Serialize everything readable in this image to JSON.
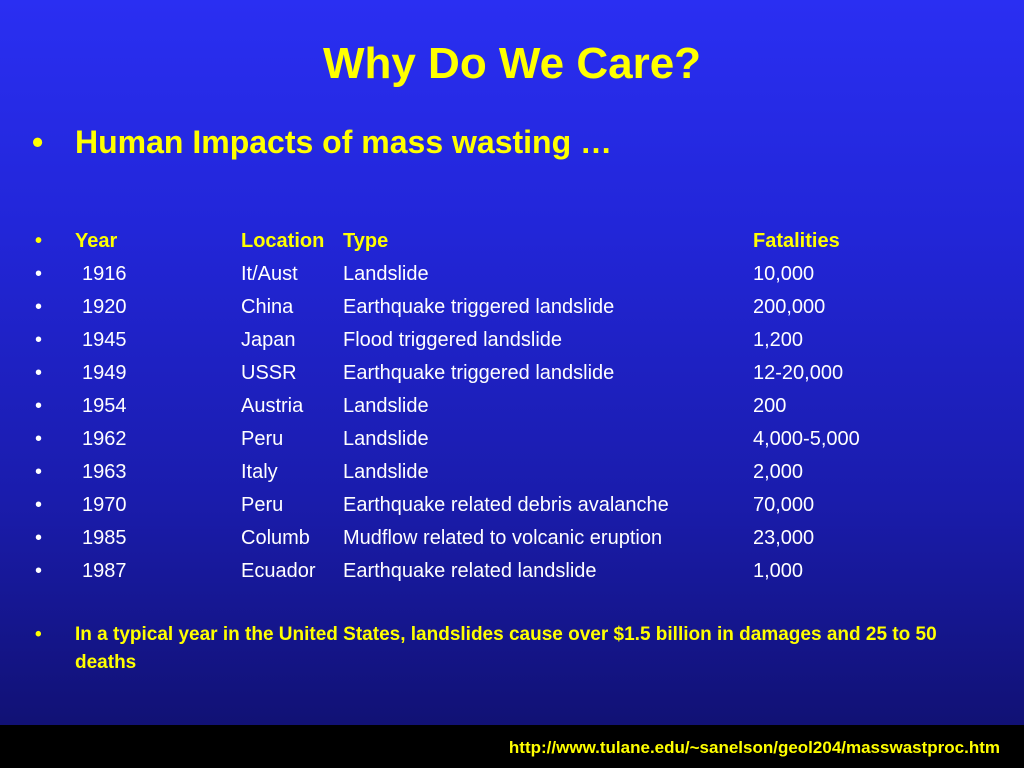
{
  "title": "Why Do We Care?",
  "subheading": {
    "bullet": "•",
    "text": "Human Impacts of mass wasting …"
  },
  "table": {
    "bullet": "•",
    "headers": [
      "Year",
      "Location",
      "Type",
      "Fatalities"
    ],
    "rows": [
      [
        "1916",
        "It/Aust",
        "Landslide",
        "10,000"
      ],
      [
        "1920",
        "China",
        "Earthquake triggered landslide",
        "200,000"
      ],
      [
        "1945",
        "Japan",
        "Flood triggered landslide",
        "1,200"
      ],
      [
        "1949",
        "USSR",
        "Earthquake triggered landslide",
        "12-20,000"
      ],
      [
        "1954",
        "Austria",
        "Landslide",
        "200"
      ],
      [
        "1962",
        "Peru",
        "Landslide",
        "4,000-5,000"
      ],
      [
        "1963",
        "Italy",
        "Landslide",
        "2,000"
      ],
      [
        "1970",
        "Peru",
        "Earthquake related debris avalanche",
        "70,000"
      ],
      [
        "1985",
        "Columb",
        "Mudflow related to volcanic eruption",
        "23,000"
      ],
      [
        "1987",
        "Ecuador",
        "Earthquake related landslide",
        "1,000"
      ]
    ]
  },
  "note": {
    "bullet": "•",
    "text": "In a typical year in the United States, landslides cause over $1.5 billion in damages and 25 to 50 deaths"
  },
  "footer": {
    "link_text": "http://www.tulane.edu/~sanelson/geol204/masswastproc.htm"
  },
  "colors": {
    "background_top": "#2a2ff2",
    "background_bottom": "#0f0f6a",
    "accent_yellow": "#ffff00",
    "body_text": "#ffffff",
    "footer_bar": "#000000"
  }
}
